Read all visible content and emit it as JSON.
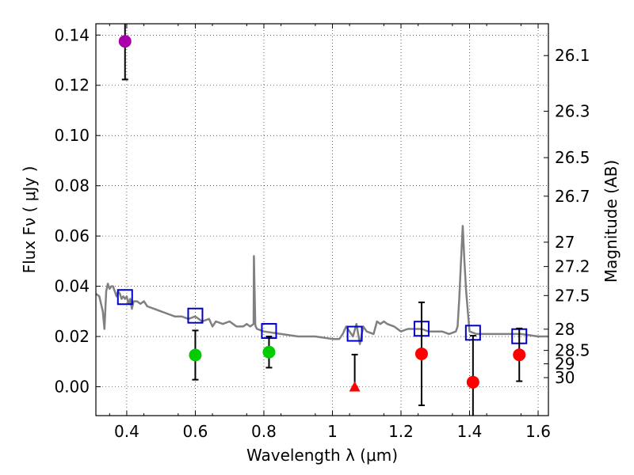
{
  "chart_data": {
    "type": "scatter",
    "xlabel": "Wavelength  λ (μm)",
    "ylabel": "Flux  Fν  ( μJy )",
    "y2label": "Magnitude (AB)",
    "xlim": [
      0.31,
      1.63
    ],
    "ylim": [
      -0.0115,
      0.1445
    ],
    "grid": true,
    "xticks": [
      0.4,
      0.6,
      0.8,
      1.0,
      1.2,
      1.4,
      1.6
    ],
    "xtick_labels": [
      "0.4",
      "0.6",
      "0.8",
      "1",
      "1.2",
      "1.4",
      "1.6"
    ],
    "yticks": [
      0.0,
      0.02,
      0.04,
      0.06,
      0.08,
      0.1,
      0.12,
      0.14
    ],
    "ytick_labels": [
      "0.00",
      "0.02",
      "0.04",
      "0.06",
      "0.08",
      "0.10",
      "0.12",
      "0.14"
    ],
    "y2ticks": [
      26.1,
      26.3,
      26.5,
      26.7,
      27,
      27.2,
      27.5,
      28,
      28.5,
      29,
      30
    ],
    "y2tick_labels": [
      "26.1",
      "26.3",
      "26.5",
      "26.7",
      "27",
      "27.2",
      "27.5",
      "28",
      "28.5",
      "29",
      "30"
    ],
    "template_spectrum": {
      "color": "#808080",
      "x": [
        0.31,
        0.32,
        0.33,
        0.335,
        0.34,
        0.345,
        0.35,
        0.355,
        0.36,
        0.365,
        0.37,
        0.375,
        0.38,
        0.385,
        0.39,
        0.395,
        0.4,
        0.405,
        0.41,
        0.415,
        0.42,
        0.43,
        0.44,
        0.45,
        0.46,
        0.48,
        0.5,
        0.52,
        0.54,
        0.56,
        0.58,
        0.6,
        0.62,
        0.64,
        0.65,
        0.66,
        0.68,
        0.7,
        0.72,
        0.74,
        0.75,
        0.76,
        0.77,
        0.771,
        0.775,
        0.776,
        0.78,
        0.8,
        0.85,
        0.9,
        0.95,
        1.0,
        1.02,
        1.03,
        1.04,
        1.05,
        1.06,
        1.07,
        1.08,
        1.09,
        1.1,
        1.12,
        1.13,
        1.14,
        1.15,
        1.16,
        1.18,
        1.2,
        1.22,
        1.24,
        1.26,
        1.28,
        1.3,
        1.32,
        1.34,
        1.36,
        1.365,
        1.37,
        1.375,
        1.38,
        1.385,
        1.39,
        1.395,
        1.4,
        1.42,
        1.45,
        1.5,
        1.55,
        1.6,
        1.63
      ],
      "y": [
        0.037,
        0.036,
        0.03,
        0.023,
        0.038,
        0.041,
        0.039,
        0.04,
        0.04,
        0.038,
        0.036,
        0.038,
        0.037,
        0.035,
        0.036,
        0.035,
        0.036,
        0.033,
        0.035,
        0.031,
        0.034,
        0.034,
        0.033,
        0.034,
        0.032,
        0.031,
        0.03,
        0.029,
        0.028,
        0.028,
        0.027,
        0.028,
        0.026,
        0.027,
        0.024,
        0.026,
        0.025,
        0.026,
        0.024,
        0.024,
        0.025,
        0.024,
        0.025,
        0.052,
        0.025,
        0.024,
        0.023,
        0.022,
        0.021,
        0.02,
        0.02,
        0.019,
        0.019,
        0.021,
        0.024,
        0.022,
        0.02,
        0.025,
        0.017,
        0.024,
        0.022,
        0.021,
        0.026,
        0.025,
        0.026,
        0.025,
        0.024,
        0.022,
        0.023,
        0.023,
        0.023,
        0.022,
        0.022,
        0.022,
        0.021,
        0.022,
        0.024,
        0.035,
        0.05,
        0.064,
        0.05,
        0.038,
        0.03,
        0.022,
        0.021,
        0.021,
        0.021,
        0.021,
        0.02,
        0.02
      ]
    },
    "series": [
      {
        "marker": "square-open",
        "color": "#0000cc",
        "points": [
          {
            "x": 0.395,
            "y": 0.0357
          },
          {
            "x": 0.6,
            "y": 0.0283
          },
          {
            "x": 0.815,
            "y": 0.0222
          },
          {
            "x": 1.065,
            "y": 0.0211
          },
          {
            "x": 1.26,
            "y": 0.0231
          },
          {
            "x": 1.41,
            "y": 0.0215
          },
          {
            "x": 1.545,
            "y": 0.0201
          }
        ]
      },
      {
        "marker": "circle",
        "color": "#aa00aa",
        "points": [
          {
            "x": 0.395,
            "y": 0.1375,
            "err": 0.0152
          }
        ]
      },
      {
        "marker": "circle",
        "color": "#00cc00",
        "points": [
          {
            "x": 0.6,
            "y": 0.0126,
            "err": 0.0098
          },
          {
            "x": 0.815,
            "y": 0.0138,
            "err": 0.0062
          }
        ]
      },
      {
        "marker": "circle",
        "color": "#ff0000",
        "points": [
          {
            "x": 1.26,
            "y": 0.0131,
            "err": 0.0205
          },
          {
            "x": 1.41,
            "y": 0.0018,
            "err": 0.0185
          },
          {
            "x": 1.545,
            "y": 0.0127,
            "err": 0.0105
          }
        ]
      },
      {
        "marker": "triangle",
        "color": "#ff0000",
        "points": [
          {
            "x": 1.065,
            "y": 0.0,
            "errup": 0.0128
          }
        ]
      }
    ]
  }
}
